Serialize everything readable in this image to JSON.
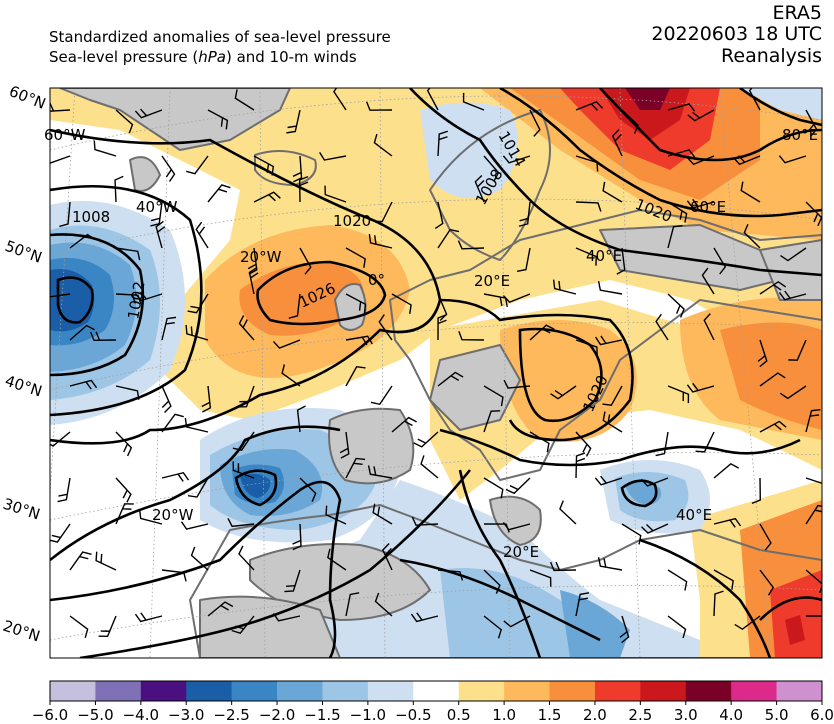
{
  "header": {
    "title_line1": "Standardized anomalies of sea-level pressure",
    "title_line2_pre": "Sea-level pressure (",
    "title_line2_unit": "hPa",
    "title_line2_post": ") and 10-m winds",
    "dataset": "ERA5",
    "datetime": "20220603 18 UTC",
    "product": "Reanalysis"
  },
  "map": {
    "lat_labels": [
      "60°N",
      "50°N",
      "40°N",
      "30°N",
      "20°N"
    ],
    "lon_labels": [
      "60°W",
      "40°W",
      "20°W",
      "20°W",
      "0°",
      "20°E",
      "40°E",
      "60°E",
      "80°E",
      "40°E",
      "20°E"
    ],
    "isobar_labels": [
      "1008",
      "1002",
      "1020",
      "1026",
      "1014",
      "1008",
      "1020",
      "1020"
    ],
    "colors": {
      "land": "#c8c8c8",
      "coast": "#6e6e6e",
      "isobar": "#000000",
      "graticule": "#a0a0a0"
    }
  },
  "colorbar": {
    "ticks": [
      "−6.0",
      "−5.0",
      "−4.0",
      "−3.0",
      "−2.5",
      "−2.0",
      "−1.5",
      "−1.0",
      "−0.5",
      "0.5",
      "1.0",
      "1.5",
      "2.0",
      "2.5",
      "3.0",
      "4.0",
      "5.0",
      "6.0"
    ],
    "colors": [
      "#c4c0dd",
      "#8070b5",
      "#4b1080",
      "#1a5ea7",
      "#3a86c4",
      "#6aa7d6",
      "#9dc5e5",
      "#cddff0",
      "#ffffff",
      "#fde08c",
      "#fdb95c",
      "#f88f3d",
      "#ef3b2c",
      "#cb181d",
      "#7b0028",
      "#dc2a8a",
      "#cf90cf"
    ]
  }
}
